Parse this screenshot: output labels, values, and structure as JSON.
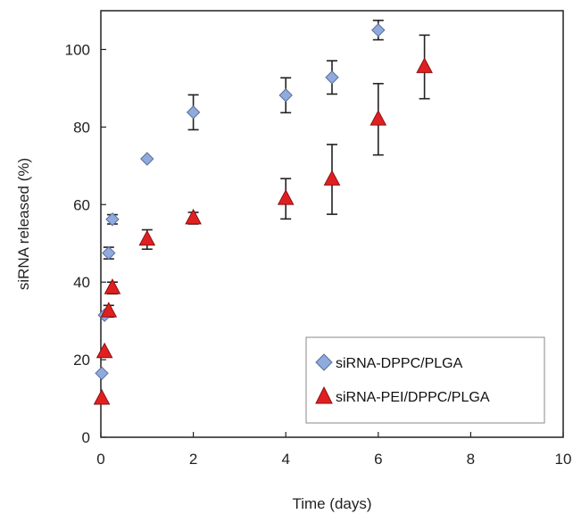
{
  "chart_data": {
    "type": "scatter",
    "xlabel": "Time (days)",
    "ylabel": "siRNA released (%)",
    "xlim": [
      0,
      10
    ],
    "ylim": [
      0,
      110
    ],
    "xticks": [
      0,
      2,
      4,
      6,
      8,
      10
    ],
    "yticks": [
      0,
      20,
      40,
      60,
      80,
      100
    ],
    "grid": false,
    "legend_position": "bottom-right",
    "series": [
      {
        "name": "siRNA-DPPC/PLGA",
        "marker": "diamond",
        "color": "#8faadc",
        "points": [
          {
            "x": 0.02,
            "y": 16.5,
            "err": 0
          },
          {
            "x": 0.08,
            "y": 31.5,
            "err": 0
          },
          {
            "x": 0.17,
            "y": 47.5,
            "err": 1.5
          },
          {
            "x": 0.25,
            "y": 56.2,
            "err": 1.2
          },
          {
            "x": 1,
            "y": 71.8,
            "err": 0
          },
          {
            "x": 2,
            "y": 83.8,
            "err": 4.5
          },
          {
            "x": 4,
            "y": 88.2,
            "err": 4.5
          },
          {
            "x": 5,
            "y": 92.8,
            "err": 4.3
          },
          {
            "x": 6,
            "y": 105,
            "err": 2.5
          }
        ]
      },
      {
        "name": "siRNA-PEI/DPPC/PLGA",
        "marker": "triangle",
        "color": "#e02020",
        "points": [
          {
            "x": 0.02,
            "y": 10,
            "err": 0
          },
          {
            "x": 0.08,
            "y": 22,
            "err": 0
          },
          {
            "x": 0.17,
            "y": 32.5,
            "err": 1.5
          },
          {
            "x": 0.25,
            "y": 38.5,
            "err": 1.5
          },
          {
            "x": 1,
            "y": 51,
            "err": 2.5
          },
          {
            "x": 2,
            "y": 56.5,
            "err": 1.5
          },
          {
            "x": 4,
            "y": 61.5,
            "err": 5.2
          },
          {
            "x": 5,
            "y": 66.5,
            "err": 9
          },
          {
            "x": 6,
            "y": 82,
            "err": 9.2
          },
          {
            "x": 7,
            "y": 95.5,
            "err": 8.2
          }
        ]
      }
    ]
  }
}
